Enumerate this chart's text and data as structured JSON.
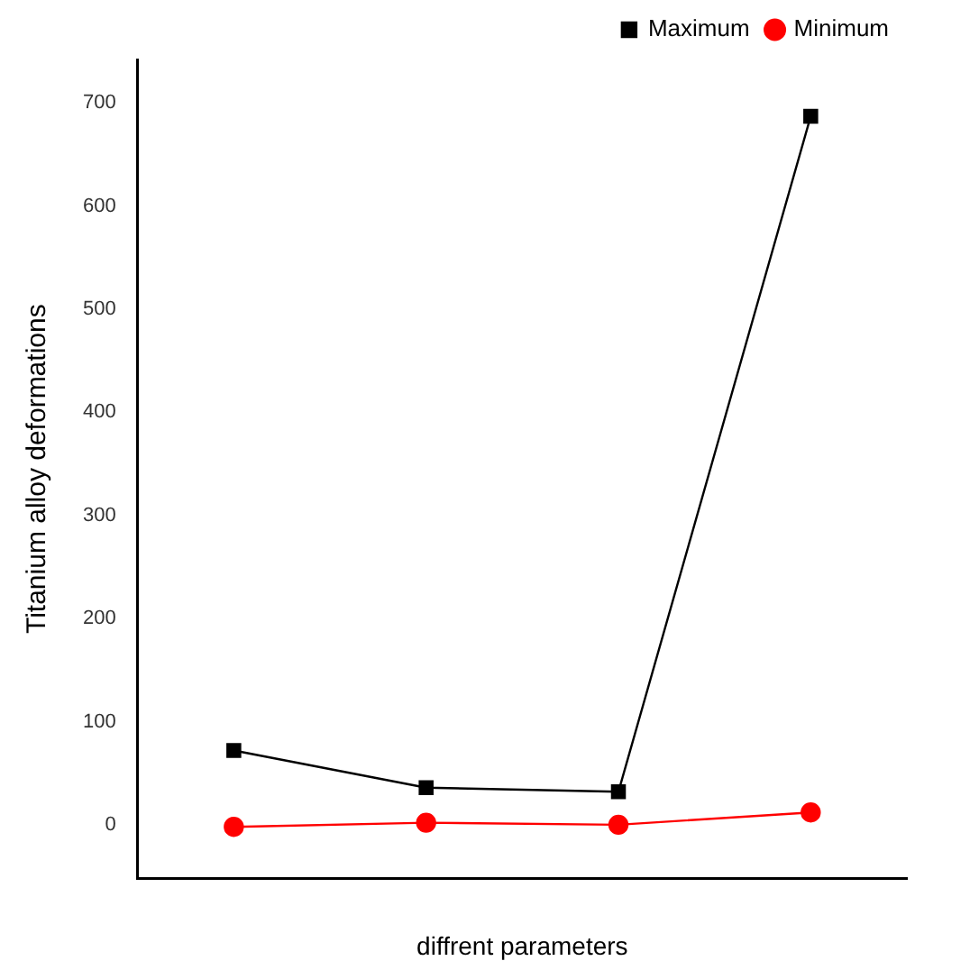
{
  "chart_data": {
    "type": "line",
    "xlabel": "diffrent parameters",
    "ylabel": "Titanium alloy deformations",
    "categories": [
      null,
      null,
      null,
      null
    ],
    "series": [
      {
        "name": "Maximum",
        "color": "#000000",
        "marker": "square",
        "values": [
          72,
          36,
          32,
          687
        ]
      },
      {
        "name": "Minimum",
        "color": "#ff0000",
        "marker": "circle",
        "values": [
          -2,
          2,
          0,
          12
        ]
      }
    ],
    "ylim": [
      -52,
      742
    ],
    "yticks": [
      0,
      100,
      200,
      300,
      400,
      500,
      600,
      700
    ],
    "grid": false,
    "legend": "top right",
    "tick_labels": "y"
  }
}
